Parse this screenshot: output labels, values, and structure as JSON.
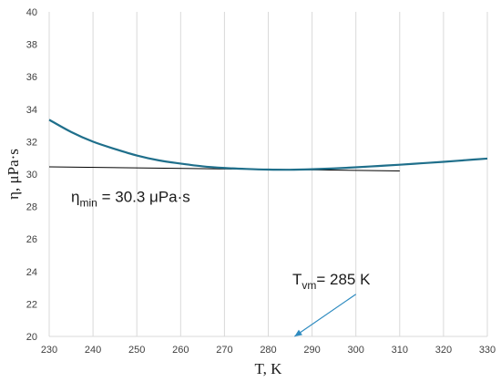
{
  "chart_data": {
    "type": "line",
    "xlabel": "T, K",
    "ylabel": "η, μPa·s",
    "xlim": [
      230,
      330
    ],
    "ylim": [
      20,
      40
    ],
    "xticks": [
      230,
      240,
      250,
      260,
      270,
      280,
      290,
      300,
      310,
      320,
      330
    ],
    "yticks": [
      20,
      22,
      24,
      26,
      28,
      30,
      32,
      34,
      36,
      38,
      40
    ],
    "grid": "vertical",
    "colors": {
      "curve": "#1f6f8b",
      "tangent": "#000000",
      "arrow": "#2e8bc0",
      "grid": "#d9d9d9"
    },
    "series": [
      {
        "x": [
          230,
          235,
          240,
          245,
          250,
          255,
          260,
          265,
          270,
          275,
          280,
          285,
          290,
          295,
          300,
          305,
          310,
          315,
          320,
          325,
          330
        ],
        "values": [
          33.35,
          32.6,
          32.0,
          31.55,
          31.15,
          30.85,
          30.65,
          30.48,
          30.38,
          30.32,
          30.28,
          30.27,
          30.3,
          30.35,
          30.42,
          30.5,
          30.58,
          30.67,
          30.76,
          30.86,
          30.96
        ]
      }
    ],
    "tangent_line": {
      "x": [
        230,
        310
      ],
      "y": [
        30.45,
        30.2
      ]
    },
    "annotations": [
      {
        "main": "η",
        "sub": "min",
        "rest": " = 30.3 μPa·s",
        "at": [
          235,
          28.3
        ]
      },
      {
        "main": "T",
        "sub": "vm",
        "rest": "= 285 K",
        "at": [
          285.5,
          23.2
        ],
        "arrow_from": [
          300,
          22.6
        ],
        "arrow_to": [
          286,
          20
        ]
      }
    ]
  }
}
